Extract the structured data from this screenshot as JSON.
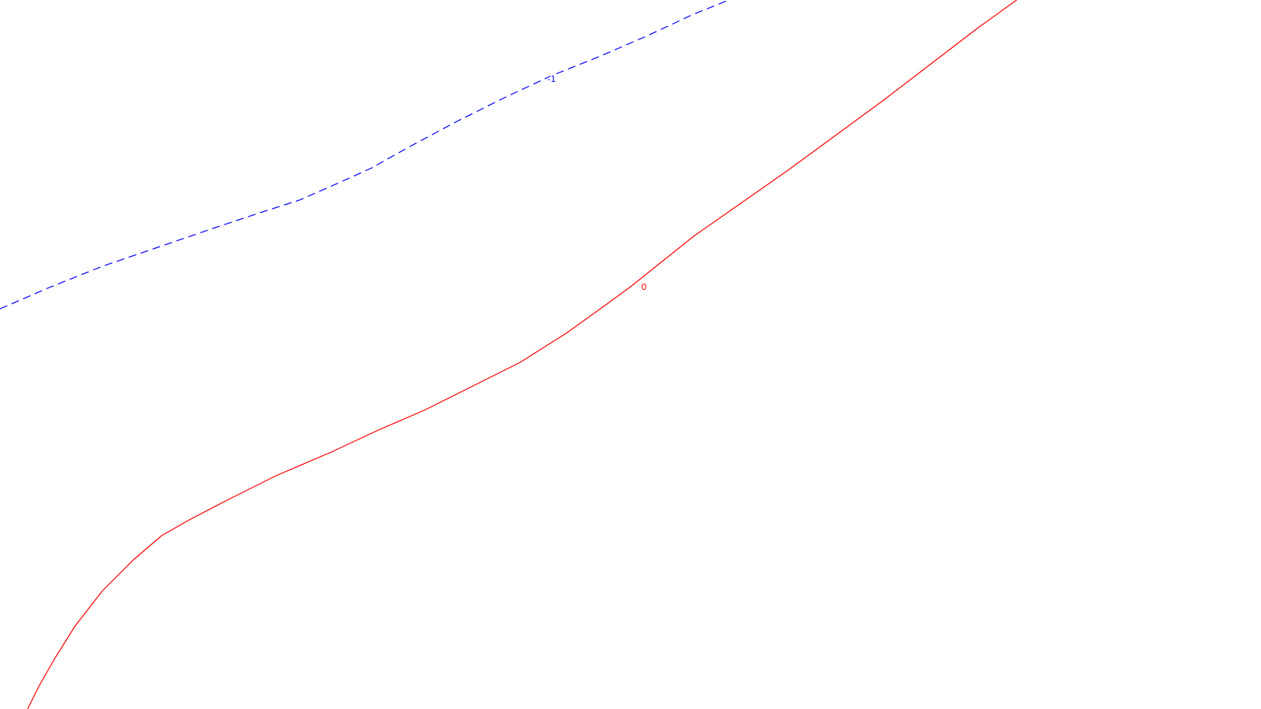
{
  "map": {
    "contours": [
      {
        "level_label": "-1",
        "color": "#0000ff",
        "line_style": "dashed"
      },
      {
        "level_label": "0",
        "color": "#ff0000",
        "line_style": "solid"
      }
    ]
  }
}
